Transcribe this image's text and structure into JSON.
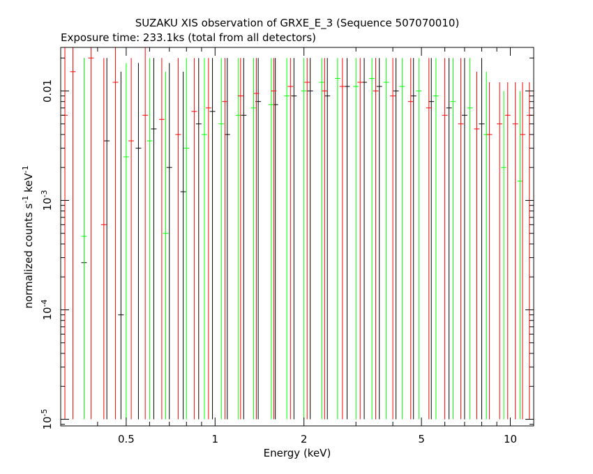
{
  "chart_data": {
    "type": "scatter",
    "title": "SUZAKU XIS observation of GRXE_E_3 (Sequence 507070010)",
    "subtitle": "Exposure time: 233.1ks (total from all detectors)",
    "xlabel": "Energy (keV)",
    "ylabel": {
      "main": "normalized counts s",
      "exp1": "-1",
      "mid": " keV",
      "exp2": "-1"
    },
    "x_scale": "log",
    "y_scale": "log",
    "xlim": [
      0.3,
      12.0
    ],
    "ylim": [
      8.7e-06,
      0.025
    ],
    "x_ticks": [
      {
        "value": 0.5,
        "label": "0.5"
      },
      {
        "value": 1,
        "label": "1"
      },
      {
        "value": 2,
        "label": "2"
      },
      {
        "value": 5,
        "label": "5"
      },
      {
        "value": 10,
        "label": "10"
      }
    ],
    "y_ticks": [
      {
        "value": 1e-05,
        "base": "10",
        "exp": "-5"
      },
      {
        "value": 0.0001,
        "base": "10",
        "exp": "-4"
      },
      {
        "value": 0.001,
        "base": "10",
        "exp": "-3"
      },
      {
        "value": 0.01,
        "base": "0.01",
        "exp": ""
      }
    ],
    "grid": false,
    "series": [
      {
        "color": "#000000",
        "points": [
          [
            0.36,
            0.00027,
            0.02,
            1e-05
          ],
          [
            0.43,
            0.0035,
            0.02,
            1e-05
          ],
          [
            0.48,
            9e-05,
            0.015,
            1e-05
          ],
          [
            0.55,
            0.003,
            0.018,
            1e-05
          ],
          [
            0.62,
            0.0045,
            0.02,
            1e-05
          ],
          [
            0.7,
            0.002,
            0.018,
            1e-05
          ],
          [
            0.78,
            0.0012,
            0.015,
            1e-05
          ],
          [
            0.88,
            0.005,
            0.02,
            1e-05
          ],
          [
            0.98,
            0.0065,
            0.02,
            1e-05
          ],
          [
            1.1,
            0.004,
            0.02,
            1e-05
          ],
          [
            1.25,
            0.006,
            0.02,
            1e-05
          ],
          [
            1.4,
            0.008,
            0.02,
            1e-05
          ],
          [
            1.6,
            0.0075,
            0.02,
            1e-05
          ],
          [
            1.85,
            0.009,
            0.02,
            1e-05
          ],
          [
            2.1,
            0.01,
            0.02,
            1e-05
          ],
          [
            2.4,
            0.009,
            0.02,
            1e-05
          ],
          [
            2.8,
            0.011,
            0.02,
            1e-05
          ],
          [
            3.2,
            0.012,
            0.02,
            1e-05
          ],
          [
            3.6,
            0.011,
            0.02,
            1e-05
          ],
          [
            4.1,
            0.01,
            0.02,
            1e-05
          ],
          [
            4.7,
            0.009,
            0.02,
            1e-05
          ],
          [
            5.4,
            0.008,
            0.02,
            1e-05
          ],
          [
            6.2,
            0.007,
            0.02,
            1e-05
          ],
          [
            7.0,
            0.006,
            0.02,
            1e-05
          ],
          [
            8.0,
            0.005,
            0.02,
            1e-05
          ]
        ]
      },
      {
        "color": "#00ff00",
        "points": [
          [
            0.36,
            0.00047,
            0.02,
            1e-05
          ],
          [
            0.5,
            0.0025,
            0.018,
            1e-05
          ],
          [
            0.6,
            0.0035,
            0.02,
            1e-05
          ],
          [
            0.68,
            0.0005,
            0.015,
            1e-05
          ],
          [
            0.8,
            0.003,
            0.02,
            1e-05
          ],
          [
            0.92,
            0.004,
            0.02,
            1e-05
          ],
          [
            1.05,
            0.005,
            0.02,
            1e-05
          ],
          [
            1.2,
            0.006,
            0.02,
            1e-05
          ],
          [
            1.35,
            0.007,
            0.02,
            1e-05
          ],
          [
            1.55,
            0.0075,
            0.02,
            1e-05
          ],
          [
            1.75,
            0.009,
            0.02,
            1e-05
          ],
          [
            2.0,
            0.01,
            0.02,
            1e-05
          ],
          [
            2.3,
            0.012,
            0.02,
            1e-05
          ],
          [
            2.6,
            0.013,
            0.02,
            1e-05
          ],
          [
            3.0,
            0.011,
            0.02,
            1e-05
          ],
          [
            3.4,
            0.013,
            0.02,
            1e-05
          ],
          [
            3.8,
            0.012,
            0.02,
            1e-05
          ],
          [
            4.3,
            0.011,
            0.02,
            1e-05
          ],
          [
            4.9,
            0.01,
            0.02,
            1e-05
          ],
          [
            5.6,
            0.009,
            0.02,
            1e-05
          ],
          [
            6.4,
            0.008,
            0.02,
            1e-05
          ],
          [
            7.3,
            0.007,
            0.02,
            1e-05
          ],
          [
            8.3,
            0.004,
            0.015,
            1e-05
          ],
          [
            9.5,
            0.002,
            0.01,
            1e-05
          ],
          [
            10.8,
            0.0015,
            0.01,
            1e-05
          ]
        ]
      },
      {
        "color": "#ff0000",
        "points": [
          [
            0.31,
            0.006,
            0.025,
            1e-05
          ],
          [
            0.33,
            0.015,
            0.025,
            1e-05
          ],
          [
            0.38,
            0.02,
            0.025,
            1e-05
          ],
          [
            0.42,
            0.0006,
            0.02,
            1e-05
          ],
          [
            0.46,
            0.012,
            0.025,
            1e-05
          ],
          [
            0.52,
            0.0035,
            0.02,
            1e-05
          ],
          [
            0.58,
            0.006,
            0.025,
            1e-05
          ],
          [
            0.66,
            0.0055,
            0.02,
            1e-05
          ],
          [
            0.75,
            0.004,
            0.02,
            1e-05
          ],
          [
            0.85,
            0.0065,
            0.02,
            1e-05
          ],
          [
            0.95,
            0.007,
            0.02,
            1e-05
          ],
          [
            1.08,
            0.008,
            0.02,
            1e-05
          ],
          [
            1.22,
            0.009,
            0.02,
            1e-05
          ],
          [
            1.38,
            0.0095,
            0.02,
            1e-05
          ],
          [
            1.58,
            0.01,
            0.02,
            1e-05
          ],
          [
            1.8,
            0.011,
            0.02,
            1e-05
          ],
          [
            2.05,
            0.012,
            0.02,
            1e-05
          ],
          [
            2.35,
            0.01,
            0.02,
            1e-05
          ],
          [
            2.7,
            0.011,
            0.02,
            1e-05
          ],
          [
            3.1,
            0.012,
            0.02,
            1e-05
          ],
          [
            3.5,
            0.01,
            0.02,
            1e-05
          ],
          [
            4.0,
            0.009,
            0.02,
            1e-05
          ],
          [
            4.6,
            0.008,
            0.02,
            1e-05
          ],
          [
            5.3,
            0.007,
            0.02,
            1e-05
          ],
          [
            6.0,
            0.006,
            0.02,
            1e-05
          ],
          [
            6.8,
            0.005,
            0.02,
            1e-05
          ],
          [
            7.7,
            0.0045,
            0.015,
            1e-05
          ],
          [
            8.5,
            0.004,
            0.012,
            1e-05
          ],
          [
            9.2,
            0.005,
            0.012,
            1e-05
          ],
          [
            9.8,
            0.006,
            0.012,
            1e-05
          ],
          [
            10.4,
            0.005,
            0.012,
            1e-05
          ],
          [
            11.0,
            0.004,
            0.012,
            1e-05
          ],
          [
            11.6,
            0.006,
            0.012,
            1e-05
          ]
        ]
      }
    ]
  }
}
